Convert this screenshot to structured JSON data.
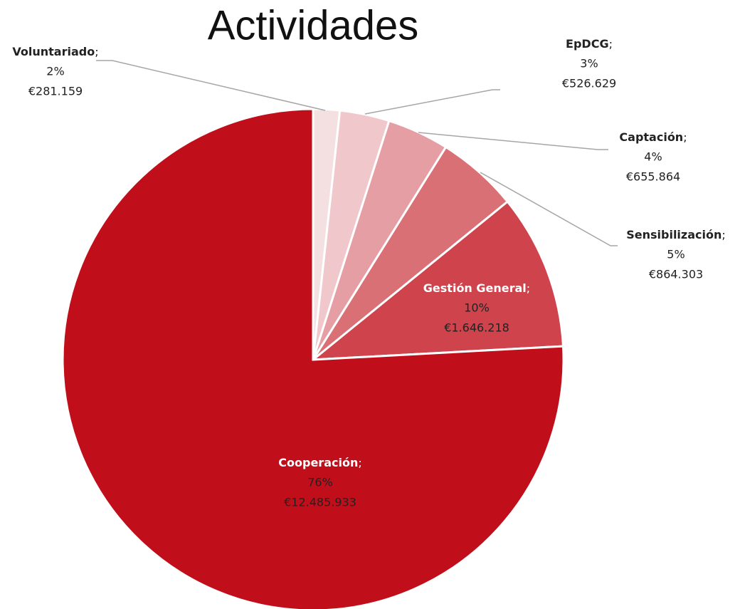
{
  "chart_data": {
    "type": "pie",
    "title": "Actividades",
    "separator": ";",
    "categories": [
      "Voluntariado",
      "EpDCG",
      "Captación",
      "Sensibilización",
      "Gestión General",
      "Cooperación"
    ],
    "values": [
      281159,
      526629,
      655864,
      864303,
      1646218,
      12485933
    ],
    "value_labels": [
      "€281.159",
      "€526.629",
      "€655.864",
      "€864.303",
      "€1.646.218",
      "€12.485.933"
    ],
    "percents": [
      2,
      3,
      4,
      5,
      10,
      76
    ],
    "percent_labels": [
      "2%",
      "3%",
      "4%",
      "5%",
      "10%",
      "76%"
    ],
    "colors": [
      "#f5e0e1",
      "#f0c8cc",
      "#e59ea3",
      "#d97076",
      "#cf434c",
      "#c00f1b"
    ]
  }
}
